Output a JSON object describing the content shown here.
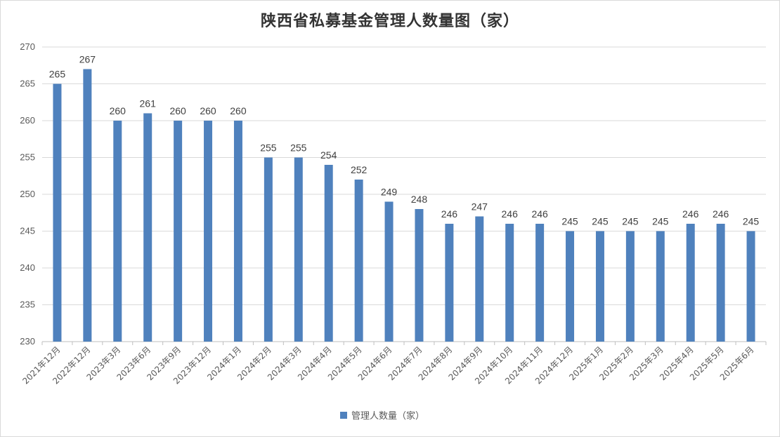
{
  "chart_data": {
    "type": "bar",
    "title": "陕西省私募基金管理人数量图（家）",
    "categories": [
      "2021年12月",
      "2022年12月",
      "2023年3月",
      "2023年6月",
      "2023年9月",
      "2023年12月",
      "2024年1月",
      "2024年2月",
      "2024年3月",
      "2024年4月",
      "2024年5月",
      "2024年6月",
      "2024年7月",
      "2024年8月",
      "2024年9月",
      "2024年10月",
      "2024年11月",
      "2024年12月",
      "2025年1月",
      "2025年2月",
      "2025年3月",
      "2025年4月",
      "2025年5月",
      "2025年6月"
    ],
    "series": [
      {
        "name": "管理人数量（家）",
        "values": [
          265,
          267,
          260,
          261,
          260,
          260,
          260,
          255,
          255,
          254,
          252,
          249,
          248,
          246,
          247,
          246,
          246,
          245,
          245,
          245,
          245,
          246,
          246,
          245
        ]
      }
    ],
    "ylim": [
      230,
      270
    ],
    "yticks": [
      230,
      235,
      240,
      245,
      250,
      255,
      260,
      265,
      270
    ],
    "grid": true,
    "legend": "bottom",
    "bar_color": "#4f81bd"
  }
}
